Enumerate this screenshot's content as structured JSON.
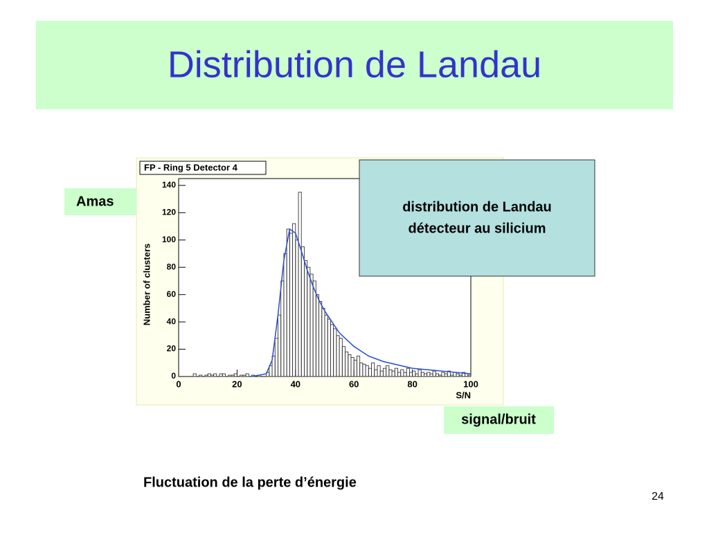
{
  "slide": {
    "title": "Distribution de Landau",
    "label_left": "Amas",
    "note_lines": [
      "distribution de Landau",
      "détecteur au silicium"
    ],
    "label_bottom": "signal/bruit",
    "caption": "Fluctuation de la perte d’énergie",
    "page_number": "24"
  },
  "chart_data": {
    "type": "histogram",
    "title": "FP - Ring 5 Detector 4",
    "x_label": "S/N",
    "y_label": "Number of clusters",
    "bins": [
      0,
      1,
      2,
      3,
      4,
      5,
      6,
      7,
      8,
      9,
      10,
      11,
      12,
      13,
      14,
      15,
      16,
      17,
      18,
      19,
      20,
      21,
      22,
      23,
      24,
      25,
      26,
      27,
      28,
      29,
      30,
      31,
      32,
      33,
      34,
      35,
      36,
      37,
      38,
      39,
      40,
      41,
      42,
      43,
      44,
      45,
      46,
      47,
      48,
      49,
      50,
      51,
      52,
      53,
      54,
      55,
      56,
      57,
      58,
      59,
      60,
      61,
      62,
      63,
      64,
      65,
      66,
      67,
      68,
      69,
      70,
      71,
      72,
      73,
      74,
      75,
      76,
      77,
      78,
      79,
      80,
      81,
      82,
      83,
      84,
      85,
      86,
      87,
      88,
      89,
      90,
      91,
      92,
      93,
      94,
      95,
      96,
      97,
      98,
      99,
      100
    ],
    "values": [
      0,
      0,
      0,
      0,
      0,
      2,
      0,
      1,
      0,
      1,
      2,
      1,
      2,
      0,
      2,
      2,
      0,
      1,
      1,
      2,
      0,
      1,
      1,
      2,
      0,
      1,
      0,
      1,
      0,
      0,
      3,
      8,
      15,
      28,
      45,
      70,
      90,
      108,
      105,
      112,
      100,
      135,
      95,
      85,
      80,
      75,
      70,
      60,
      55,
      50,
      45,
      42,
      38,
      35,
      30,
      28,
      22,
      18,
      16,
      14,
      12,
      15,
      10,
      9,
      8,
      6,
      10,
      5,
      8,
      4,
      6,
      8,
      5,
      4,
      6,
      3,
      5,
      3,
      6,
      3,
      4,
      2,
      5,
      3,
      2,
      3,
      2,
      4,
      2,
      1,
      3,
      2,
      4,
      1,
      3,
      2,
      1,
      3,
      2,
      1
    ],
    "color": "#333333",
    "fit": {
      "color": "#3355cc",
      "x": [
        25,
        30,
        32,
        34,
        36,
        38,
        40,
        42,
        44,
        46,
        48,
        50,
        55,
        60,
        65,
        70,
        80,
        90,
        100
      ],
      "values": [
        0,
        2,
        12,
        45,
        85,
        108,
        105,
        92,
        78,
        66,
        56,
        48,
        32,
        22,
        15,
        11,
        6,
        4,
        2
      ]
    },
    "xlim": [
      0,
      100
    ],
    "xticks": [
      0,
      20,
      40,
      60,
      80,
      100
    ],
    "ylim": [
      0,
      145
    ],
    "yticks": [
      0,
      20,
      40,
      60,
      80,
      100,
      120,
      140
    ]
  }
}
